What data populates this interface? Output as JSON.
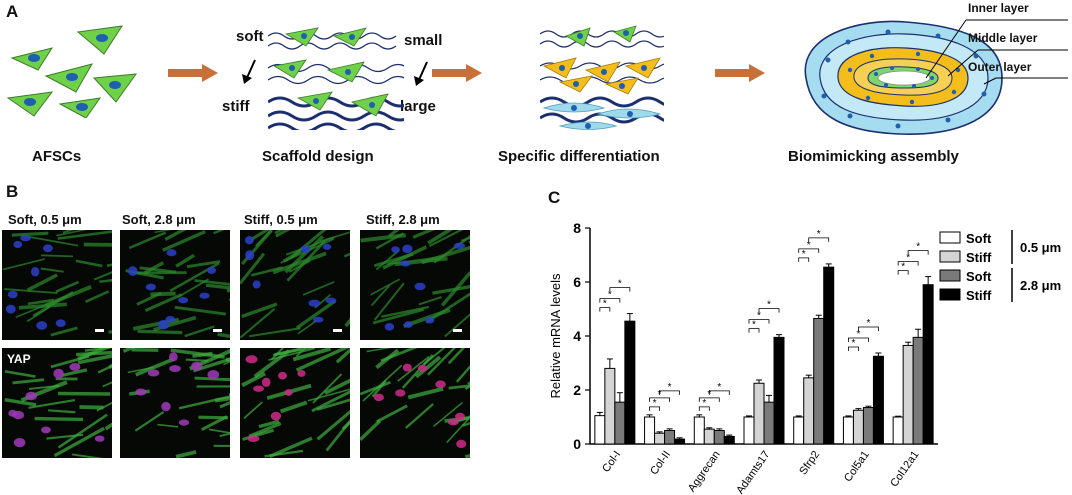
{
  "panelA": {
    "letter": "A",
    "captions": [
      "AFSCs",
      "Scaffold design",
      "Specific differentiation",
      "Biomimicking assembly"
    ],
    "scaffold_labels": {
      "soft": "soft",
      "stiff": "stiff",
      "small": "small",
      "large": "large"
    },
    "layer_labels": [
      "Inner layer",
      "Middle layer",
      "Outer layer"
    ]
  },
  "panelB": {
    "letter": "B",
    "columns": [
      "Soft, 0.5 μm",
      "Soft, 2.8 μm",
      "Stiff, 0.5 μm",
      "Stiff, 2.8 μm"
    ],
    "row2_label": "YAP"
  },
  "panelC": {
    "letter": "C"
  },
  "chart_data": {
    "type": "bar",
    "ylabel": "Relative mRNA levels",
    "ylim": [
      0,
      8
    ],
    "yticks": [
      0,
      2,
      4,
      6,
      8
    ],
    "categories": [
      "Col-I",
      "Col-II",
      "Aggrecan",
      "Adamts17",
      "Sfrp2",
      "Col5a1",
      "Col12a1"
    ],
    "series": [
      {
        "name": "Soft",
        "group": "0.5 μm",
        "color": "#ffffff",
        "values": [
          1.05,
          1.0,
          1.0,
          1.0,
          1.0,
          1.0,
          1.0
        ],
        "err": [
          0.12,
          0.08,
          0.08,
          0.04,
          0.04,
          0.04,
          0.03
        ]
      },
      {
        "name": "Stiff",
        "group": "0.5 μm",
        "color": "#d4d4d4",
        "values": [
          2.8,
          0.4,
          0.55,
          2.25,
          2.45,
          1.25,
          3.65
        ],
        "err": [
          0.35,
          0.05,
          0.05,
          0.12,
          0.1,
          0.06,
          0.12
        ]
      },
      {
        "name": "Soft",
        "group": "2.8 μm",
        "color": "#7a7a7a",
        "values": [
          1.55,
          0.5,
          0.5,
          1.55,
          4.65,
          1.35,
          3.95
        ],
        "err": [
          0.35,
          0.06,
          0.06,
          0.25,
          0.12,
          0.05,
          0.3
        ]
      },
      {
        "name": "Stiff",
        "group": "2.8 μm",
        "color": "#000000",
        "values": [
          4.55,
          0.18,
          0.28,
          3.95,
          6.55,
          3.25,
          5.9
        ],
        "err": [
          0.28,
          0.05,
          0.05,
          0.1,
          0.12,
          0.12,
          0.3
        ]
      }
    ],
    "legend_groups": [
      "0.5 μm",
      "2.8 μm"
    ],
    "annotation": "*",
    "legend_position": "right",
    "grid": false
  }
}
